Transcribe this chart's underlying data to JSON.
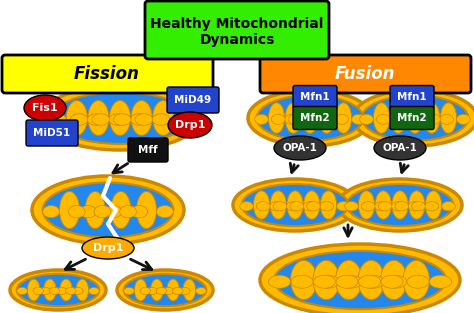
{
  "title": "Healthy Mitochondrial\nDynamics",
  "title_bg": "#33ee00",
  "title_color": "black",
  "fission_label": "Fission",
  "fission_bg": "#ffff00",
  "fusion_label": "Fusion",
  "fusion_bg": "#ff8800",
  "bg_color": "#ffffff",
  "mito_outer": "#ffbb00",
  "mito_outer_edge": "#cc8800",
  "mito_inner": "#2288ee",
  "fis1_color": "#cc0000",
  "fis1_text": "Fis1",
  "mid49_color": "#2244cc",
  "mid49_text": "MiD49",
  "mid51_color": "#2244cc",
  "mid51_text": "MiD51",
  "drp1_oval_color": "#cc0000",
  "drp1_oval_text": "Drp1",
  "mff_color": "#111111",
  "mff_text": "Mff",
  "drp1_box_color": "#ffaa00",
  "drp1_box_text": "Drp1",
  "mfn1_color": "#2244cc",
  "mfn1_text": "Mfn1",
  "mfn2_color": "#116611",
  "mfn2_text": "Mfn2",
  "opa1_color": "#333333",
  "opa1_text": "OPA-1",
  "arrow_color": "#111111"
}
